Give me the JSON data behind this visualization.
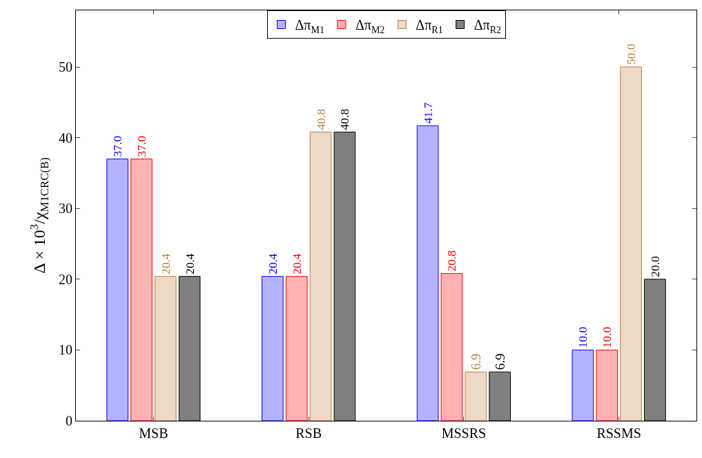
{
  "chart_data": {
    "type": "bar",
    "ylabel": "Δ × 10$^{3}$/χ$_{M1CRC(B)}$",
    "categories": [
      "MSB",
      "RSB",
      "MSSRS",
      "RSSMS"
    ],
    "series": [
      {
        "name": "Δπ$_{M1}$",
        "color": "#b3b3ff",
        "values": [
          37.0,
          20.4,
          41.7,
          10.0
        ],
        "value_labels": [
          "37.0",
          "20.4",
          "41.7",
          "10.0"
        ]
      },
      {
        "name": "Δπ$_{M2}$",
        "color": "#ffb3b3",
        "values": [
          37.0,
          20.4,
          20.8,
          10.0
        ],
        "value_labels": [
          "37.0",
          "20.4",
          "20.8",
          "10.0"
        ]
      },
      {
        "name": "Δπ$_{R1}$",
        "color": "#ecd9c6",
        "values": [
          20.4,
          40.8,
          6.9,
          50.0
        ],
        "value_labels": [
          "20.4",
          "40.8",
          "6.9",
          "50.0"
        ]
      },
      {
        "name": "Δπ$_{R2}$",
        "color": "#808080",
        "values": [
          20.4,
          40.8,
          6.9,
          20.0
        ],
        "value_labels": [
          "20.4",
          "40.8",
          "6.9",
          "20.0"
        ]
      }
    ],
    "ylim": [
      0,
      58
    ],
    "yticks": [
      0,
      10,
      20,
      30,
      40,
      50
    ],
    "grid": false,
    "legend": "top"
  }
}
